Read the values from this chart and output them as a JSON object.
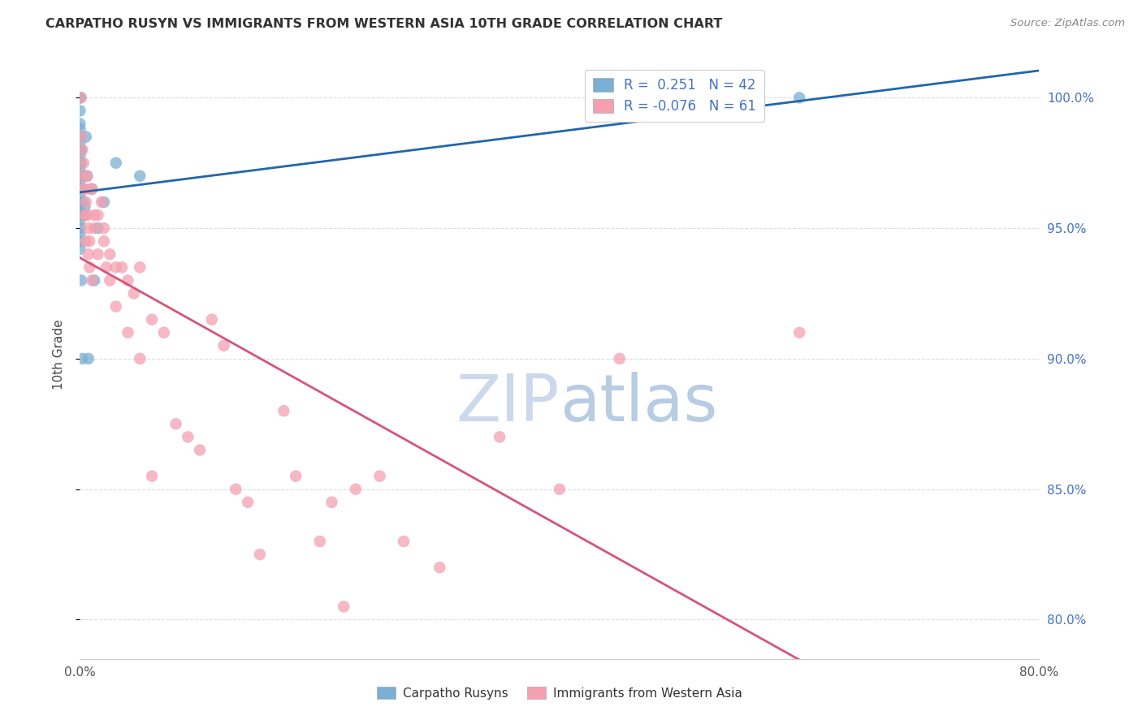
{
  "title": "CARPATHO RUSYN VS IMMIGRANTS FROM WESTERN ASIA 10TH GRADE CORRELATION CHART",
  "source": "Source: ZipAtlas.com",
  "ylabel": "10th Grade",
  "ylabel_right_ticks": [
    80.0,
    85.0,
    90.0,
    95.0,
    100.0
  ],
  "xmin": 0.0,
  "xmax": 80.0,
  "ymin": 78.5,
  "ymax": 101.8,
  "blue_r": 0.251,
  "blue_n": 42,
  "pink_r": -0.076,
  "pink_n": 61,
  "blue_color": "#7bafd4",
  "pink_color": "#f4a0b0",
  "blue_line_color": "#2166ac",
  "pink_line_color": "#d6547a",
  "watermark_zip_color": "#c8d8f0",
  "watermark_atlas_color": "#b0c8e8",
  "background_color": "#ffffff",
  "grid_color": "#dddddd",
  "blue_dots_x": [
    0.0,
    0.0,
    0.0,
    0.0,
    0.0,
    0.0,
    0.0,
    0.0,
    0.0,
    0.0,
    0.0,
    0.0,
    0.0,
    0.0,
    0.0,
    0.0,
    0.0,
    0.0,
    0.0,
    0.0,
    0.0,
    0.0,
    0.0,
    0.1,
    0.1,
    0.1,
    0.1,
    0.2,
    0.2,
    0.3,
    0.3,
    0.4,
    0.5,
    0.6,
    0.7,
    1.0,
    1.2,
    1.5,
    2.0,
    3.0,
    5.0,
    60.0
  ],
  "blue_dots_y": [
    100.0,
    100.0,
    99.5,
    99.0,
    98.8,
    98.5,
    98.3,
    98.0,
    97.8,
    97.5,
    97.3,
    97.0,
    96.8,
    96.5,
    96.3,
    96.0,
    95.8,
    95.5,
    95.3,
    95.0,
    94.8,
    94.5,
    94.2,
    98.0,
    97.5,
    97.0,
    93.0,
    96.5,
    90.0,
    96.0,
    95.5,
    95.8,
    98.5,
    97.0,
    90.0,
    96.5,
    93.0,
    95.0,
    96.0,
    97.5,
    97.0,
    100.0
  ],
  "pink_dots_x": [
    0.1,
    0.1,
    0.2,
    0.2,
    0.3,
    0.3,
    0.4,
    0.4,
    0.5,
    0.5,
    0.6,
    0.6,
    0.7,
    0.7,
    0.8,
    0.8,
    0.9,
    1.0,
    1.0,
    1.2,
    1.2,
    1.5,
    1.5,
    1.8,
    2.0,
    2.0,
    2.2,
    2.5,
    2.5,
    3.0,
    3.0,
    3.5,
    4.0,
    4.0,
    4.5,
    5.0,
    5.0,
    6.0,
    6.0,
    7.0,
    8.0,
    9.0,
    10.0,
    11.0,
    12.0,
    13.0,
    14.0,
    15.0,
    17.0,
    18.0,
    20.0,
    21.0,
    22.0,
    23.0,
    25.0,
    27.0,
    30.0,
    35.0,
    40.0,
    45.0,
    60.0
  ],
  "pink_dots_y": [
    98.5,
    100.0,
    97.0,
    98.0,
    96.5,
    97.5,
    95.5,
    96.5,
    96.0,
    94.5,
    95.5,
    97.0,
    94.0,
    95.0,
    93.5,
    94.5,
    96.5,
    93.0,
    96.5,
    95.5,
    95.0,
    94.0,
    95.5,
    96.0,
    94.5,
    95.0,
    93.5,
    94.0,
    93.0,
    93.5,
    92.0,
    93.5,
    93.0,
    91.0,
    92.5,
    90.0,
    93.5,
    91.5,
    85.5,
    91.0,
    87.5,
    87.0,
    86.5,
    91.5,
    90.5,
    85.0,
    84.5,
    82.5,
    88.0,
    85.5,
    83.0,
    84.5,
    80.5,
    85.0,
    85.5,
    83.0,
    82.0,
    87.0,
    85.0,
    90.0,
    91.0
  ]
}
